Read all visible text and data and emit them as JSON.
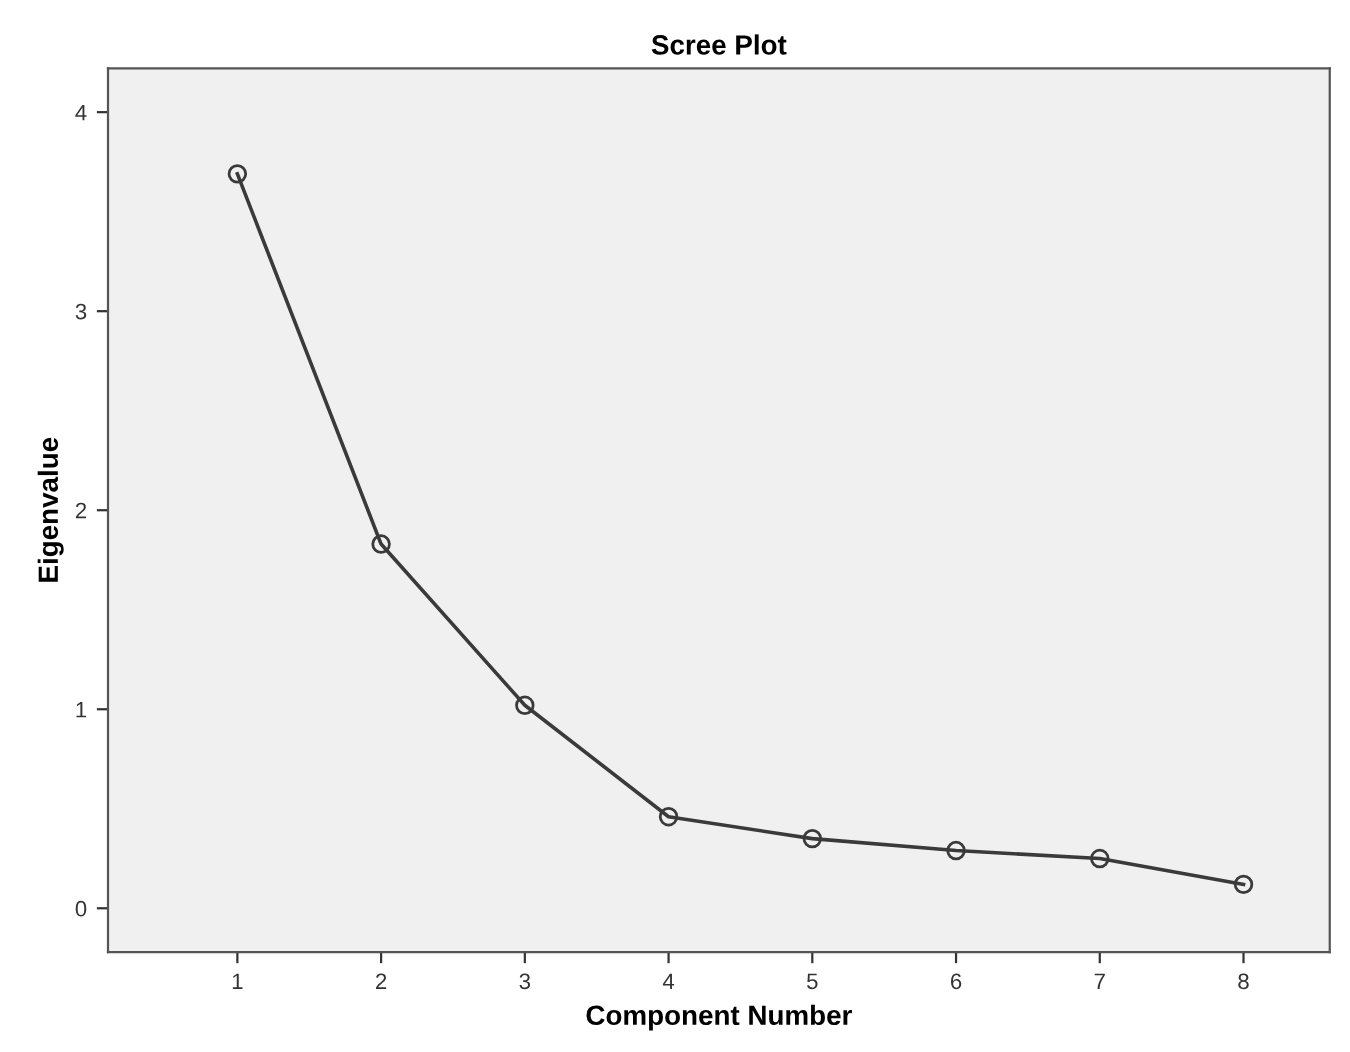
{
  "chart_data": {
    "type": "line",
    "title": "Scree Plot",
    "xlabel": "Component Number",
    "ylabel": "Eigenvalue",
    "x": [
      1,
      2,
      3,
      4,
      5,
      6,
      7,
      8
    ],
    "series": [
      {
        "color": "#3a3a3a",
        "values": [
          3.69,
          1.83,
          1.02,
          0.46,
          0.35,
          0.29,
          0.25,
          0.12
        ]
      }
    ],
    "xlim": [
      0.1,
      8.6
    ],
    "xticks": [
      1,
      2,
      3,
      4,
      5,
      6,
      7,
      8
    ],
    "ylim": [
      -0.22,
      4.22
    ],
    "yticks": [
      0,
      1,
      2,
      3,
      4
    ],
    "marker": "circle",
    "line_style": "solid",
    "grid": false
  }
}
